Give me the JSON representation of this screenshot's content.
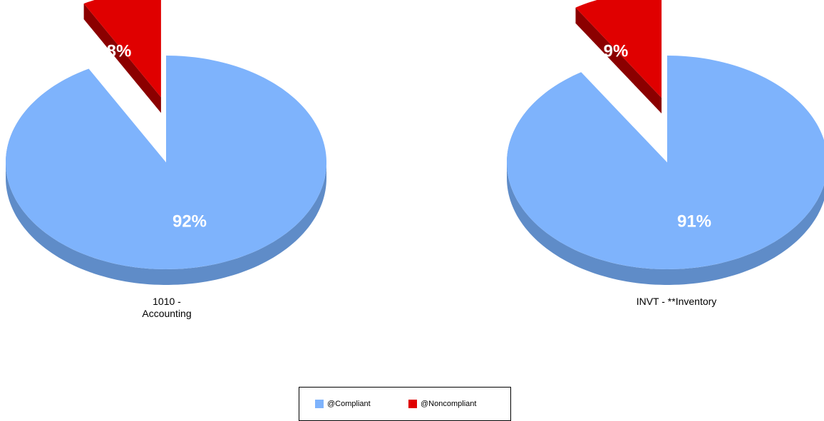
{
  "chart_data": [
    {
      "type": "pie",
      "title": "",
      "category": [
        "1010 -",
        "Accounting"
      ],
      "slices": [
        {
          "name": "@Compliant",
          "value": 92,
          "label": "92%"
        },
        {
          "name": "@Noncompliant",
          "value": 8,
          "label": "8%",
          "exploded": true
        }
      ]
    },
    {
      "type": "pie",
      "title": "",
      "category": [
        "INVT - **Inventory"
      ],
      "slices": [
        {
          "name": "@Compliant",
          "value": 91,
          "label": "91%"
        },
        {
          "name": "@Noncompliant",
          "value": 9,
          "label": "9%",
          "exploded": true
        }
      ]
    }
  ],
  "legend": {
    "placement": "bottom-center",
    "items": [
      {
        "name": "@Compliant",
        "color": "#7EB3FC"
      },
      {
        "name": "@Noncompliant",
        "color": "#E00000"
      }
    ]
  },
  "colors": {
    "compliant_top": "#7EB3FC",
    "compliant_side": "#5F8CC8",
    "noncompliant_top": "#E00000",
    "noncompliant_side": "#8B0000"
  }
}
